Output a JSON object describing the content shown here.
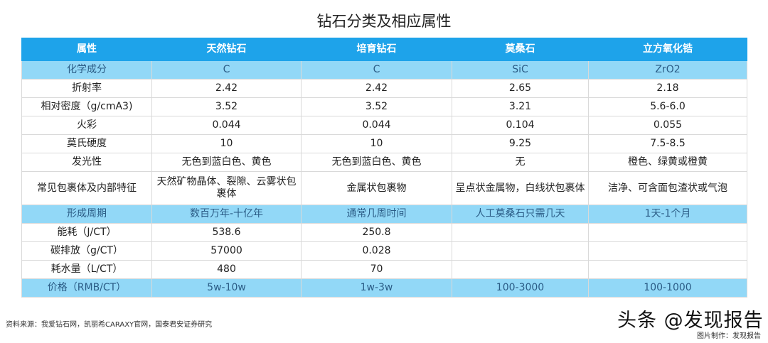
{
  "title": "钻石分类及相应属性",
  "headers": [
    "属性",
    "天然钻石",
    "培育钻石",
    "莫桑石",
    "立方氧化锆"
  ],
  "rows": [
    {
      "cells": [
        "化学成分",
        "C",
        "C",
        "SiC",
        "ZrO2"
      ],
      "highlight": true
    },
    {
      "cells": [
        "折射率",
        "2.42",
        "2.42",
        "2.65",
        "2.18"
      ]
    },
    {
      "cells": [
        "相对密度（g/cmA3)",
        "3.52",
        "3.52",
        "3.21",
        "5.6-6.0"
      ]
    },
    {
      "cells": [
        "火彩",
        "0.044",
        "0.044",
        "0.104",
        "0.055"
      ]
    },
    {
      "cells": [
        "莫氏硬度",
        "10",
        "10",
        "9.25",
        "7.5-8.5"
      ]
    },
    {
      "cells": [
        "发光性",
        "无色到蓝白色、黄色",
        "无色到蓝白色、黄色",
        "无",
        "橙色、绿黄或橙黄"
      ]
    },
    {
      "cells": [
        "常见包裹体及内部特征",
        "天然矿物晶体、裂隙、云雾状包裹体",
        "金属状包裹物",
        "呈点状金属物，白线状包裹体",
        "洁净、可含面包渣状或气泡"
      ],
      "tall": true
    },
    {
      "cells": [
        "形成周期",
        "数百万年-十亿年",
        "通常几周时间",
        "人工莫桑石只需几天",
        "1天-1个月"
      ],
      "highlight": true
    },
    {
      "cells": [
        "能耗（J/CT）",
        "538.6",
        "250.8",
        "",
        ""
      ]
    },
    {
      "cells": [
        "碳排放（g/CT）",
        "57000",
        "0.028",
        "",
        ""
      ]
    },
    {
      "cells": [
        "耗水量（L/CT）",
        "480",
        "70",
        "",
        ""
      ]
    },
    {
      "cells": [
        "价格（RMB/CT）",
        "5w-10w",
        "1w-3w",
        "100-3000",
        "100-1000"
      ],
      "highlight": true
    }
  ],
  "source": "资料来源：我爱钻石网，凯丽希CARAXY官网，国泰君安证券研究",
  "watermark": "头条 @发现报告",
  "credit": "图片制作：发现报告",
  "colors": {
    "header": "#1ea3ea",
    "highlight_row": "#92d8f7"
  }
}
